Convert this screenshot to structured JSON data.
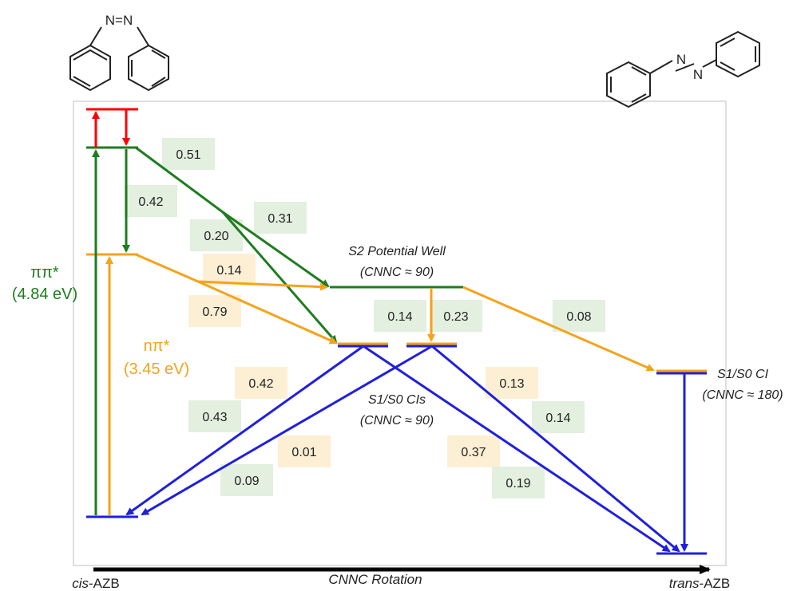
{
  "colors": {
    "red": "#ff0000",
    "green": "#1e7d1e",
    "orange": "#f5a31a",
    "blue": "#1f1fe0",
    "box_green": "#e3efdf",
    "box_orange": "#fdefd3",
    "frame": "#bfbfbf"
  },
  "molecules": {
    "cis_atoms": "N=N",
    "trans_n1": "N",
    "trans_n2": "N"
  },
  "state_labels": {
    "pipi_name": "ππ*",
    "pipi_energy": "(4.84 eV)",
    "npi_name": "nπ*",
    "npi_energy": "(3.45 eV)",
    "s2_well_title": "S2 Potential Well",
    "s2_well_angle": "(CNNC ≈ 90)",
    "ci90_title": "S1/S0 CIs",
    "ci90_angle": "(CNNC ≈ 90)",
    "ci180_title": "S1/S0 CI",
    "ci180_angle": "(CNNC ≈ 180)"
  },
  "axis": {
    "left_italic": "cis",
    "left_rest": "-AZB",
    "center": "CNNC Rotation",
    "right_italic": "trans",
    "right_rest": "-AZB"
  },
  "branching_ratios": {
    "r051": "0.51",
    "r042_green": "0.42",
    "r031": "0.31",
    "r020": "0.20",
    "r014_orange": "0.14",
    "r079": "0.79",
    "r014_green": "0.14",
    "r023": "0.23",
    "r008": "0.08",
    "r042_orange": "0.42",
    "r043": "0.43",
    "r001": "0.01",
    "r009": "0.09",
    "r013": "0.13",
    "r014_blue": "0.14",
    "r037": "0.37",
    "r019": "0.19"
  }
}
